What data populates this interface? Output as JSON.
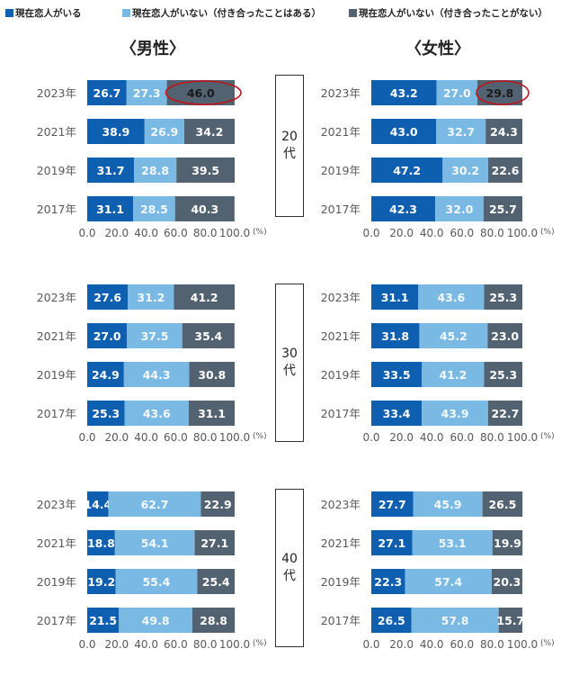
{
  "legend": [
    {
      "label": "現在恋人がいる",
      "color": "#0e5fb0"
    },
    {
      "label": "現在恋人がいない（付き合ったことはある）",
      "color": "#7ab9e3"
    },
    {
      "label": "現在恋人がいない（付き合ったことがない）",
      "color": "#536270"
    }
  ],
  "titles": {
    "male": "〈男性〉",
    "female": "〈女性〉"
  },
  "age_groups": [
    {
      "num": "20",
      "kanji": "代"
    },
    {
      "num": "30",
      "kanji": "代"
    },
    {
      "num": "40",
      "kanji": "代"
    }
  ],
  "chart_data": [
    {
      "type": "bar",
      "orientation": "horizontal",
      "stacked": true,
      "gender": "男性",
      "age": "20代",
      "categories": [
        "2023年",
        "2021年",
        "2019年",
        "2017年"
      ],
      "series": [
        {
          "name": "現在恋人がいる",
          "values": [
            26.7,
            38.9,
            31.7,
            31.1
          ]
        },
        {
          "name": "現在恋人がいない（付き合ったことはある）",
          "values": [
            27.3,
            26.9,
            28.8,
            28.5
          ]
        },
        {
          "name": "現在恋人がいない（付き合ったことがない）",
          "values": [
            46.0,
            34.2,
            39.5,
            40.3
          ]
        }
      ],
      "xlim": [
        0,
        100
      ],
      "xticks": [
        "0.0",
        "20.0",
        "40.0",
        "60.0",
        "80.0",
        "100.0"
      ],
      "unit": "(%)",
      "highlight": {
        "category": "2023年",
        "series": 2
      }
    },
    {
      "type": "bar",
      "orientation": "horizontal",
      "stacked": true,
      "gender": "女性",
      "age": "20代",
      "categories": [
        "2023年",
        "2021年",
        "2019年",
        "2017年"
      ],
      "series": [
        {
          "name": "現在恋人がいる",
          "values": [
            43.2,
            43.0,
            47.2,
            42.3
          ]
        },
        {
          "name": "現在恋人がいない（付き合ったことはある）",
          "values": [
            27.0,
            32.7,
            30.2,
            32.0
          ]
        },
        {
          "name": "現在恋人がいない（付き合ったことがない）",
          "values": [
            29.8,
            24.3,
            22.6,
            25.7
          ]
        }
      ],
      "xlim": [
        0,
        100
      ],
      "xticks": [
        "0.0",
        "20.0",
        "40.0",
        "60.0",
        "80.0",
        "100.0"
      ],
      "unit": "(%)",
      "highlight": {
        "category": "2023年",
        "series": 2
      }
    },
    {
      "type": "bar",
      "orientation": "horizontal",
      "stacked": true,
      "gender": "男性",
      "age": "30代",
      "categories": [
        "2023年",
        "2021年",
        "2019年",
        "2017年"
      ],
      "series": [
        {
          "name": "現在恋人がいる",
          "values": [
            27.6,
            27.0,
            24.9,
            25.3
          ]
        },
        {
          "name": "現在恋人がいない（付き合ったことはある）",
          "values": [
            31.2,
            37.5,
            44.3,
            43.6
          ]
        },
        {
          "name": "現在恋人がいない（付き合ったことがない）",
          "values": [
            41.2,
            35.4,
            30.8,
            31.1
          ]
        }
      ],
      "xlim": [
        0,
        100
      ],
      "xticks": [
        "0.0",
        "20.0",
        "40.0",
        "60.0",
        "80.0",
        "100.0"
      ],
      "unit": "(%)"
    },
    {
      "type": "bar",
      "orientation": "horizontal",
      "stacked": true,
      "gender": "女性",
      "age": "30代",
      "categories": [
        "2023年",
        "2021年",
        "2019年",
        "2017年"
      ],
      "series": [
        {
          "name": "現在恋人がいる",
          "values": [
            31.1,
            31.8,
            33.5,
            33.4
          ]
        },
        {
          "name": "現在恋人がいない（付き合ったことはある）",
          "values": [
            43.6,
            45.2,
            41.2,
            43.9
          ]
        },
        {
          "name": "現在恋人がいない（付き合ったことがない）",
          "values": [
            25.3,
            23.0,
            25.3,
            22.7
          ]
        }
      ],
      "xlim": [
        0,
        100
      ],
      "xticks": [
        "0.0",
        "20.0",
        "40.0",
        "60.0",
        "80.0",
        "100.0"
      ],
      "unit": "(%)"
    },
    {
      "type": "bar",
      "orientation": "horizontal",
      "stacked": true,
      "gender": "男性",
      "age": "40代",
      "categories": [
        "2023年",
        "2021年",
        "2019年",
        "2017年"
      ],
      "series": [
        {
          "name": "現在恋人がいる",
          "values": [
            14.4,
            18.8,
            19.2,
            21.5
          ]
        },
        {
          "name": "現在恋人がいない（付き合ったことはある）",
          "values": [
            62.7,
            54.1,
            55.4,
            49.8
          ]
        },
        {
          "name": "現在恋人がいない（付き合ったことがない）",
          "values": [
            22.9,
            27.1,
            25.4,
            28.8
          ]
        }
      ],
      "xlim": [
        0,
        100
      ],
      "xticks": [
        "0.0",
        "20.0",
        "40.0",
        "60.0",
        "80.0",
        "100.0"
      ],
      "unit": "(%)"
    },
    {
      "type": "bar",
      "orientation": "horizontal",
      "stacked": true,
      "gender": "女性",
      "age": "40代",
      "categories": [
        "2023年",
        "2021年",
        "2019年",
        "2017年"
      ],
      "series": [
        {
          "name": "現在恋人がいる",
          "values": [
            27.7,
            27.1,
            22.3,
            26.5
          ]
        },
        {
          "name": "現在恋人がいない（付き合ったことはある）",
          "values": [
            45.9,
            53.1,
            57.4,
            57.8
          ]
        },
        {
          "name": "現在恋人がいない（付き合ったことがない）",
          "values": [
            26.5,
            19.9,
            20.3,
            15.7
          ]
        }
      ],
      "xlim": [
        0,
        100
      ],
      "xticks": [
        "0.0",
        "20.0",
        "40.0",
        "60.0",
        "80.0",
        "100.0"
      ],
      "unit": "(%)"
    }
  ]
}
